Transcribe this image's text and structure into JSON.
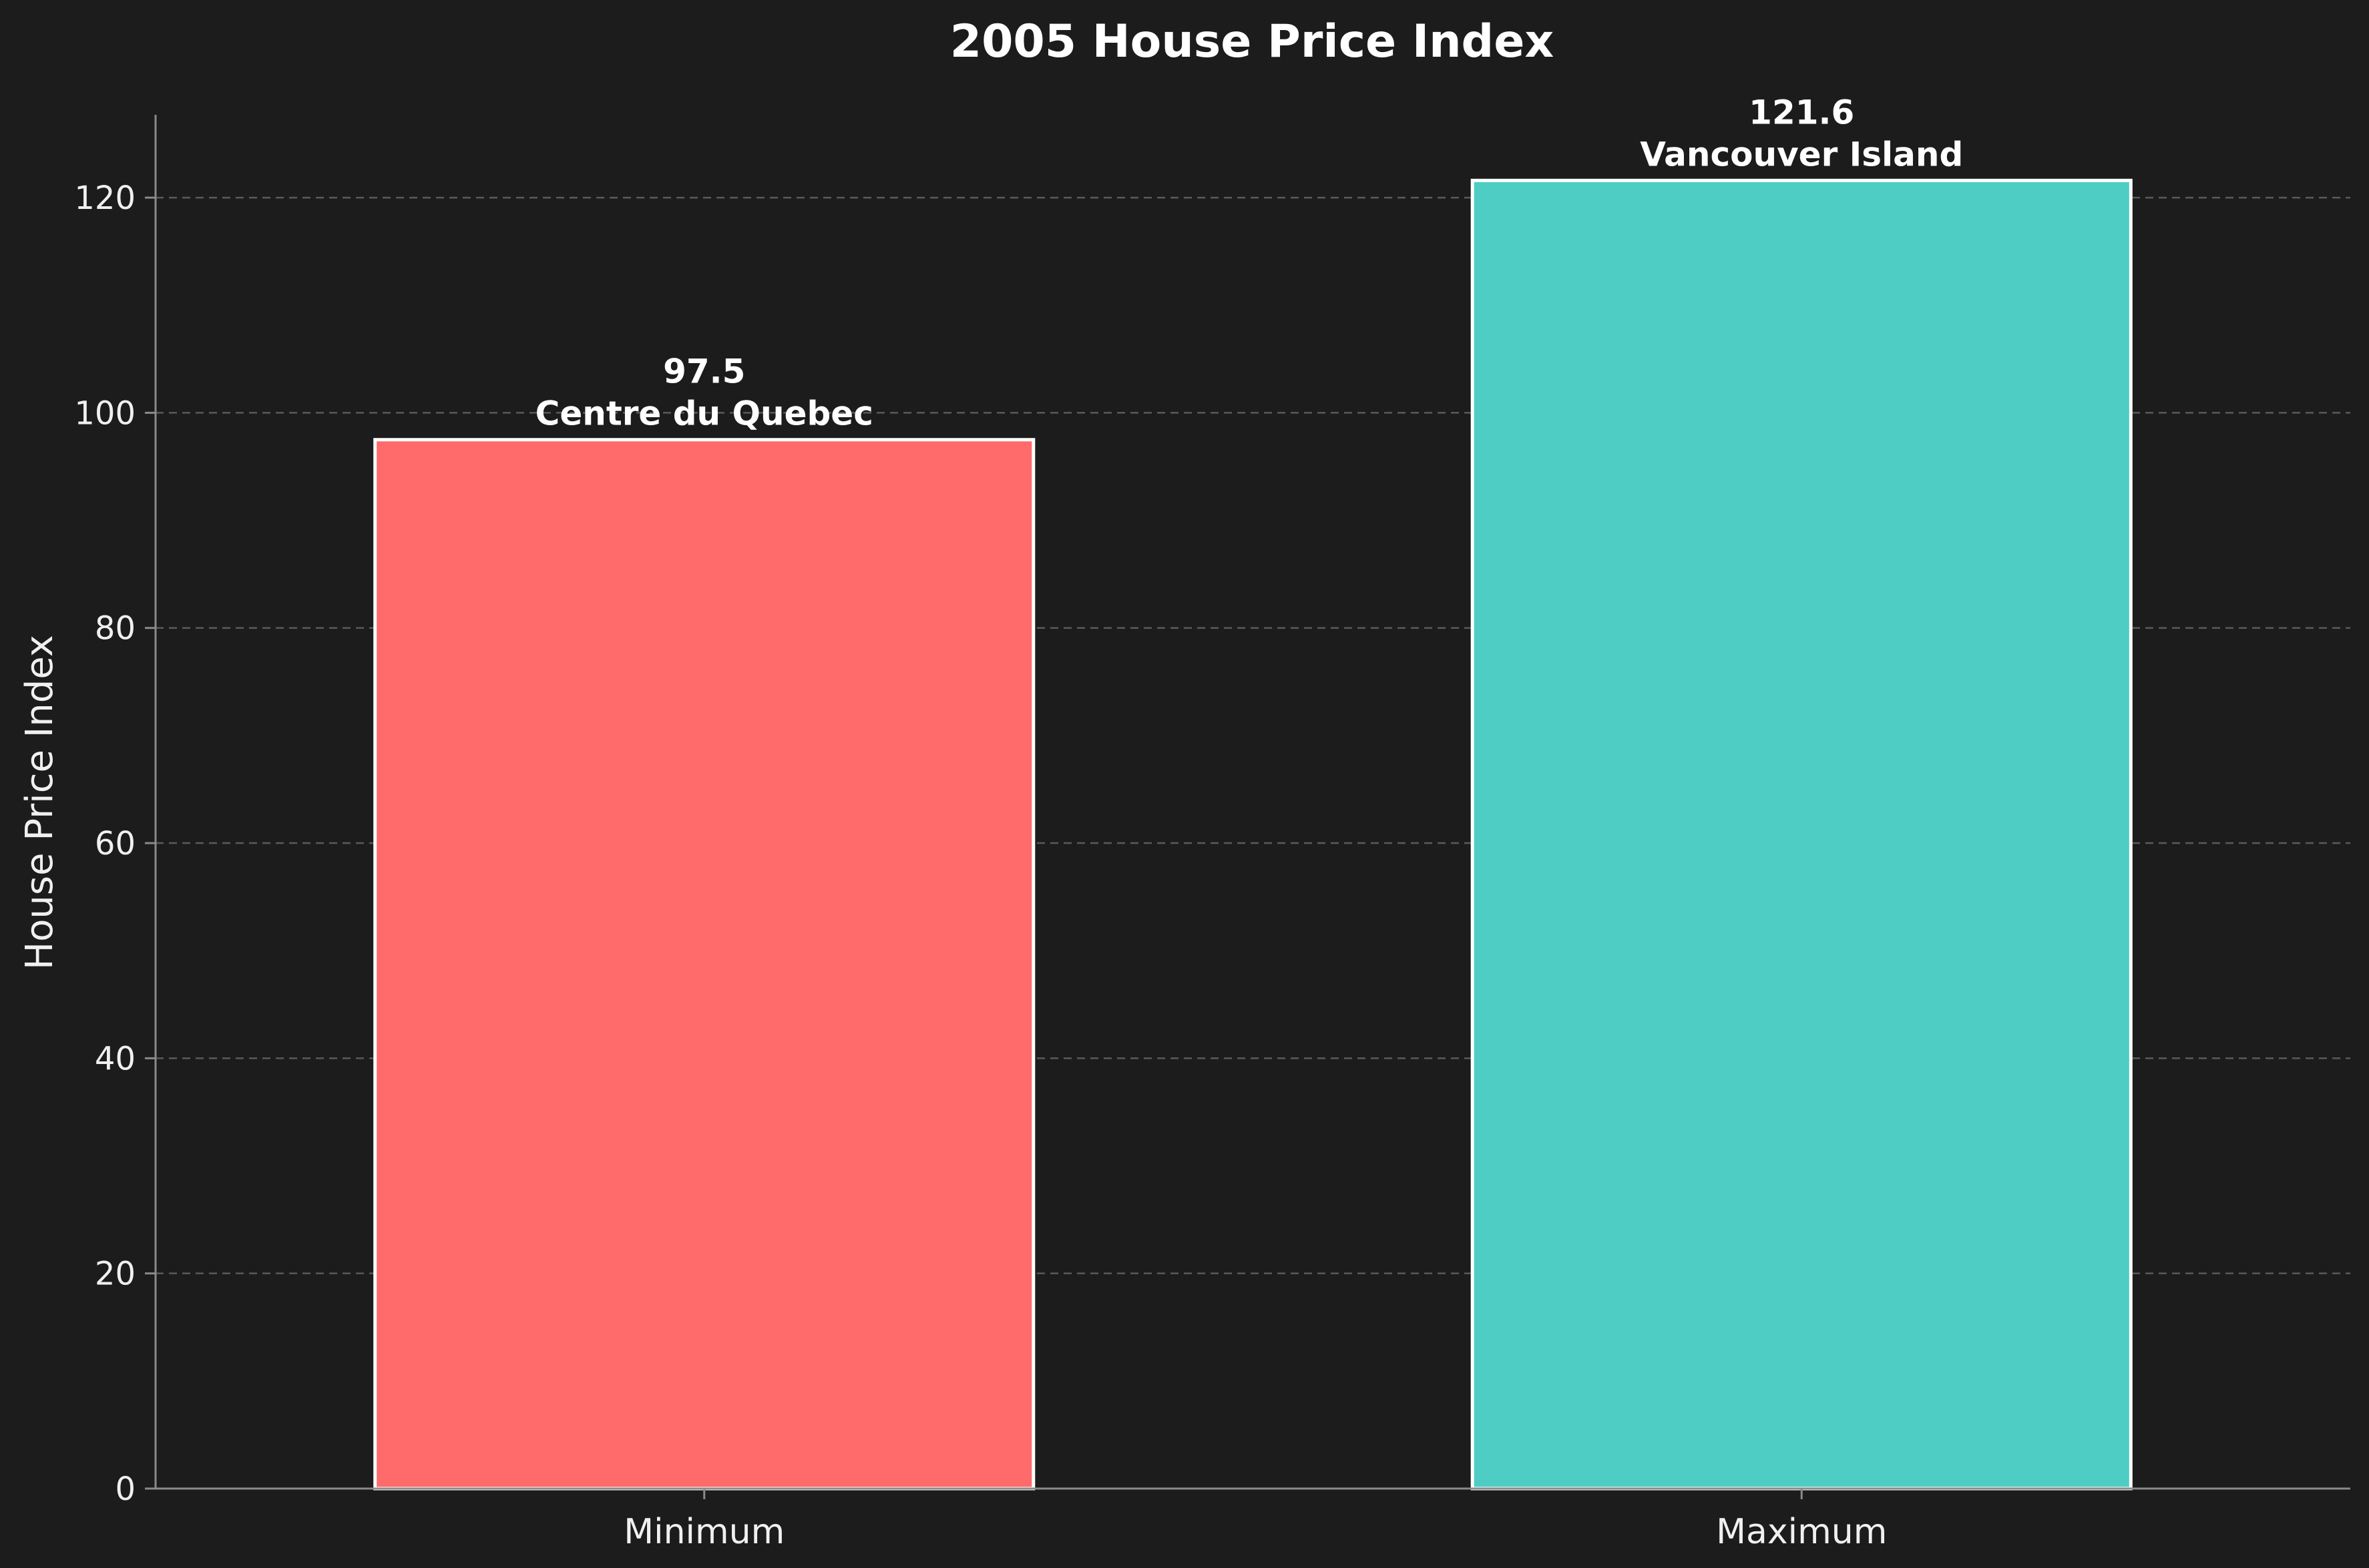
{
  "chart_data": {
    "type": "bar",
    "title": "2005 House Price Index",
    "xlabel": "",
    "ylabel": "House Price Index",
    "ylim": [
      0,
      127.7
    ],
    "yticks": [
      0,
      20,
      40,
      60,
      80,
      100,
      120
    ],
    "grid": "y-dashed",
    "categories": [
      "Minimum",
      "Maximum"
    ],
    "values": [
      97.5,
      121.6
    ],
    "value_labels": [
      "97.5",
      "121.6"
    ],
    "region_labels": [
      "Centre du Quebec",
      "Vancouver Island"
    ],
    "colors": [
      "#ff6b6b",
      "#4ecdc4"
    ],
    "background": "#1c1c1c"
  }
}
